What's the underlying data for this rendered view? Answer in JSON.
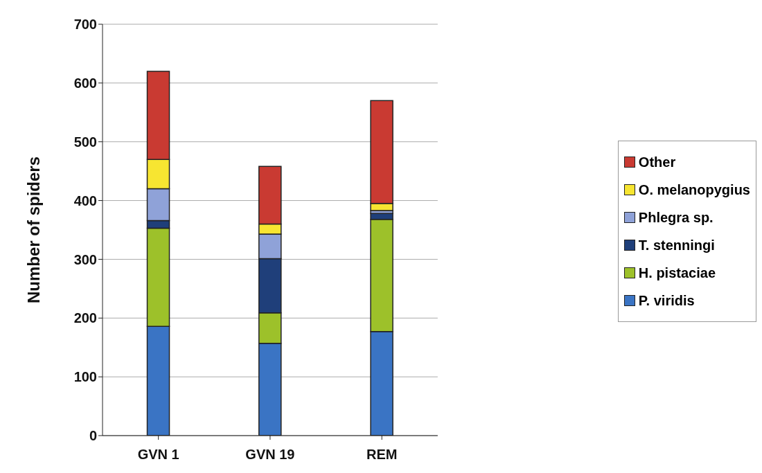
{
  "chart_data": {
    "type": "bar",
    "stacked": true,
    "ylabel": "Number of spiders",
    "categories": [
      "GVN 1",
      "GVN 19",
      "REM"
    ],
    "series": [
      {
        "name": "P. viridis",
        "color": "#3a74c4",
        "values": [
          186,
          157,
          177
        ]
      },
      {
        "name": "H. pistaciae",
        "color": "#9dc12a",
        "values": [
          167,
          52,
          191
        ]
      },
      {
        "name": "T. stenningi",
        "color": "#1f3f7a",
        "values": [
          13,
          92,
          10
        ]
      },
      {
        "name": "Phlegra sp.",
        "color": "#8fa2d8",
        "values": [
          54,
          42,
          5
        ]
      },
      {
        "name": "O. melanopygius",
        "color": "#f7e531",
        "values": [
          50,
          17,
          12
        ]
      },
      {
        "name": "Other",
        "color": "#c93a32",
        "values": [
          150,
          98,
          175
        ]
      }
    ],
    "ylim": [
      0,
      700
    ],
    "yticks": [
      0,
      100,
      200,
      300,
      400,
      500,
      600,
      700
    ],
    "grid": "y",
    "legend": "right"
  }
}
